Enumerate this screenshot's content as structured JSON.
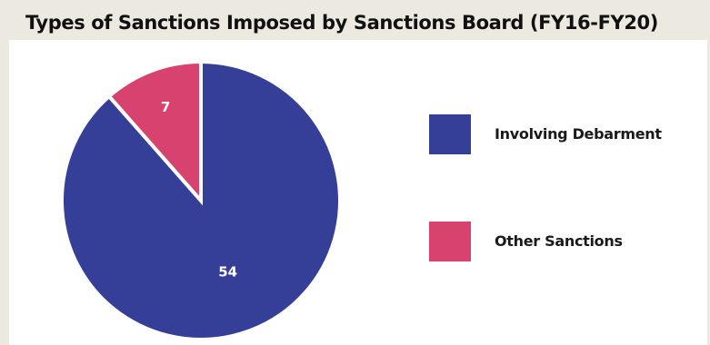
{
  "chart_data": {
    "type": "pie",
    "title": "Types of Sanctions Imposed by Sanctions Board (FY16-FY20)",
    "slices": [
      {
        "label": "Involving Debarment",
        "value": 54,
        "color": "#363f98"
      },
      {
        "label": "Other Sanctions",
        "value": 7,
        "color": "#d8426e"
      }
    ],
    "legend_position": "right"
  }
}
